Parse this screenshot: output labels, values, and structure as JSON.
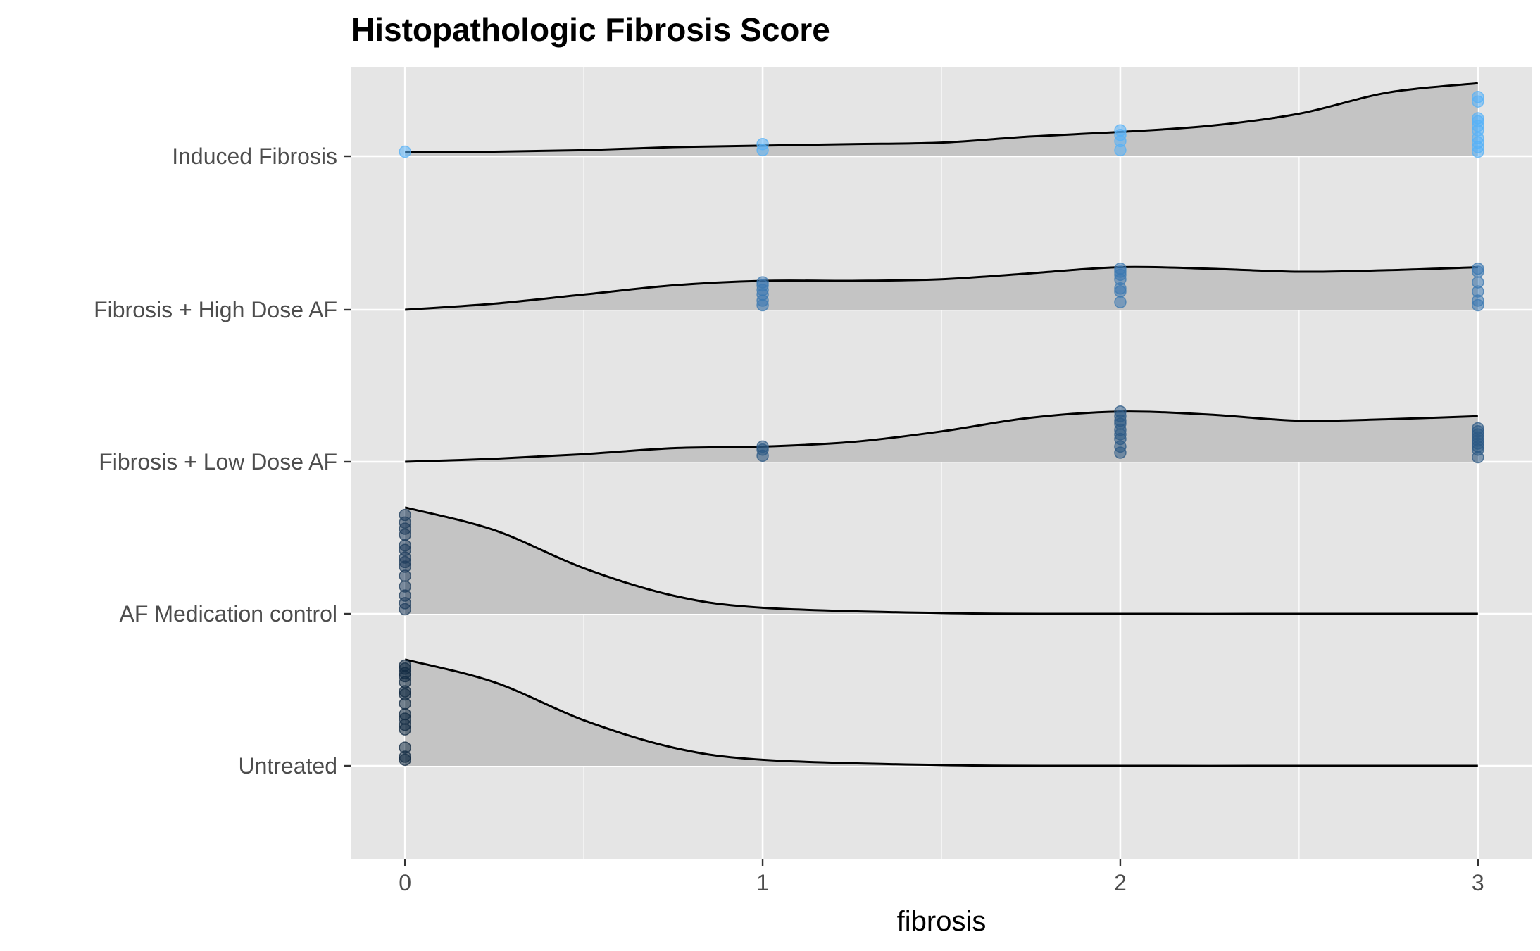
{
  "chart_data": {
    "type": "ridgeline",
    "title": "Histopathologic Fibrosis Score",
    "xlabel": "fibrosis",
    "ylabel": "",
    "xlim": [
      -0.15,
      3.15
    ],
    "x_ticks": [
      0,
      1,
      2,
      3
    ],
    "x_minor_ticks": [
      0.5,
      1.5,
      2.5
    ],
    "categories": [
      "Untreated",
      "AF Medication control",
      "Fibrosis + Low Dose AF",
      "Fibrosis + High Dose AF",
      "Induced Fibrosis"
    ],
    "grid": true,
    "legend": "none",
    "colors": {
      "panel": "#e5e5e5",
      "grid": "#ffffff",
      "density_fill": "#c4c4c4",
      "density_line": "#000000",
      "axis_tick": "#333333"
    },
    "series": [
      {
        "name": "Untreated",
        "point_color": "#132b43",
        "density_x": [
          0,
          0.25,
          0.5,
          0.75,
          1.0,
          1.5,
          2.0,
          2.5,
          3.0
        ],
        "density_y": [
          0.7,
          0.55,
          0.3,
          0.12,
          0.04,
          0.005,
          0,
          0,
          0
        ],
        "points": [
          0,
          0,
          0,
          0,
          0,
          0,
          0,
          0,
          0,
          0,
          0,
          0,
          0,
          0,
          0
        ],
        "point_heights": [
          0.04,
          0.06,
          0.12,
          0.24,
          0.27,
          0.31,
          0.34,
          0.41,
          0.47,
          0.49,
          0.55,
          0.59,
          0.61,
          0.64,
          0.66
        ]
      },
      {
        "name": "AF Medication control",
        "point_color": "#1f3d5c",
        "density_x": [
          0,
          0.25,
          0.5,
          0.75,
          1.0,
          1.5,
          2.0,
          2.5,
          3.0
        ],
        "density_y": [
          0.7,
          0.55,
          0.3,
          0.12,
          0.04,
          0.005,
          0,
          0,
          0
        ],
        "points": [
          0,
          0,
          0,
          0,
          0,
          0,
          0,
          0,
          0,
          0,
          0,
          0,
          0,
          0
        ],
        "point_heights": [
          0.03,
          0.07,
          0.12,
          0.18,
          0.25,
          0.31,
          0.34,
          0.37,
          0.42,
          0.45,
          0.52,
          0.56,
          0.6,
          0.65
        ]
      },
      {
        "name": "Fibrosis + Low Dose AF",
        "point_color": "#2c5a85",
        "density_x": [
          0,
          0.25,
          0.5,
          0.75,
          1.0,
          1.25,
          1.5,
          1.75,
          2.0,
          2.25,
          2.5,
          2.75,
          3.0
        ],
        "density_y": [
          0,
          0.02,
          0.05,
          0.09,
          0.1,
          0.13,
          0.2,
          0.29,
          0.33,
          0.31,
          0.27,
          0.28,
          0.3
        ],
        "points": [
          1,
          1,
          1,
          2,
          2,
          2,
          2,
          2,
          2,
          2,
          2,
          2,
          3,
          3,
          3,
          3,
          3,
          3,
          3,
          3,
          3
        ],
        "point_heights": [
          0.04,
          0.08,
          0.1,
          0.06,
          0.1,
          0.15,
          0.18,
          0.21,
          0.25,
          0.27,
          0.3,
          0.33,
          0.03,
          0.08,
          0.1,
          0.12,
          0.14,
          0.16,
          0.18,
          0.2,
          0.22
        ]
      },
      {
        "name": "Fibrosis + High Dose AF",
        "point_color": "#3c79b2",
        "density_x": [
          0,
          0.25,
          0.5,
          0.75,
          1.0,
          1.25,
          1.5,
          1.75,
          2.0,
          2.25,
          2.5,
          2.75,
          3.0
        ],
        "density_y": [
          0,
          0.04,
          0.1,
          0.16,
          0.19,
          0.19,
          0.2,
          0.24,
          0.28,
          0.27,
          0.25,
          0.26,
          0.28
        ],
        "points": [
          1,
          1,
          1,
          1,
          1,
          1,
          2,
          2,
          2,
          2,
          2,
          2,
          2,
          3,
          3,
          3,
          3,
          3,
          3
        ],
        "point_heights": [
          0.03,
          0.06,
          0.1,
          0.13,
          0.16,
          0.18,
          0.05,
          0.12,
          0.14,
          0.2,
          0.23,
          0.25,
          0.27,
          0.03,
          0.06,
          0.12,
          0.18,
          0.25,
          0.27
        ]
      },
      {
        "name": "Induced Fibrosis",
        "point_color": "#56b1f7",
        "density_x": [
          0,
          0.25,
          0.5,
          0.75,
          1.0,
          1.25,
          1.5,
          1.75,
          2.0,
          2.25,
          2.5,
          2.75,
          3.0
        ],
        "density_y": [
          0.03,
          0.03,
          0.04,
          0.06,
          0.07,
          0.08,
          0.09,
          0.13,
          0.16,
          0.2,
          0.28,
          0.42,
          0.48
        ],
        "points": [
          0,
          1,
          1,
          2,
          2,
          2,
          2,
          3,
          3,
          3,
          3,
          3,
          3,
          3,
          3,
          3,
          3
        ],
        "point_heights": [
          0.03,
          0.04,
          0.08,
          0.04,
          0.1,
          0.14,
          0.17,
          0.03,
          0.06,
          0.09,
          0.12,
          0.17,
          0.2,
          0.23,
          0.25,
          0.36,
          0.39
        ]
      }
    ]
  }
}
